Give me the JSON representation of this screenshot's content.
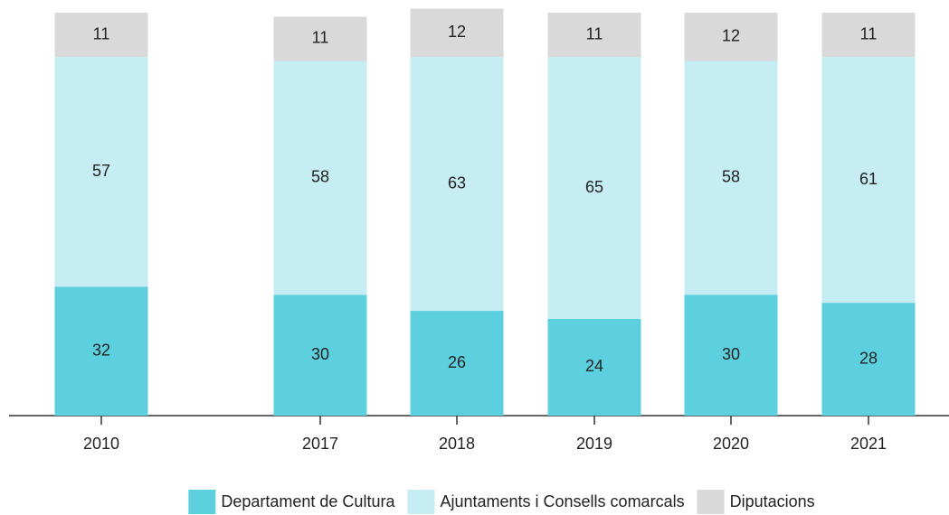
{
  "chart_data": {
    "type": "stacked_bar",
    "categories": [
      "2010",
      "2017",
      "2018",
      "2019",
      "2020",
      "2021"
    ],
    "series": [
      {
        "name": "Departament de Cultura",
        "color": "#5dd0df",
        "values": [
          32,
          30,
          26,
          24,
          30,
          28
        ]
      },
      {
        "name": "Ajuntaments i Consells comarcals",
        "color": "#c6edf3",
        "values": [
          57,
          58,
          63,
          65,
          58,
          61
        ]
      },
      {
        "name": "Diputacions",
        "color": "#d9d9d9",
        "values": [
          11,
          11,
          12,
          11,
          12,
          11
        ]
      }
    ],
    "ylim": [
      0,
      100
    ]
  }
}
